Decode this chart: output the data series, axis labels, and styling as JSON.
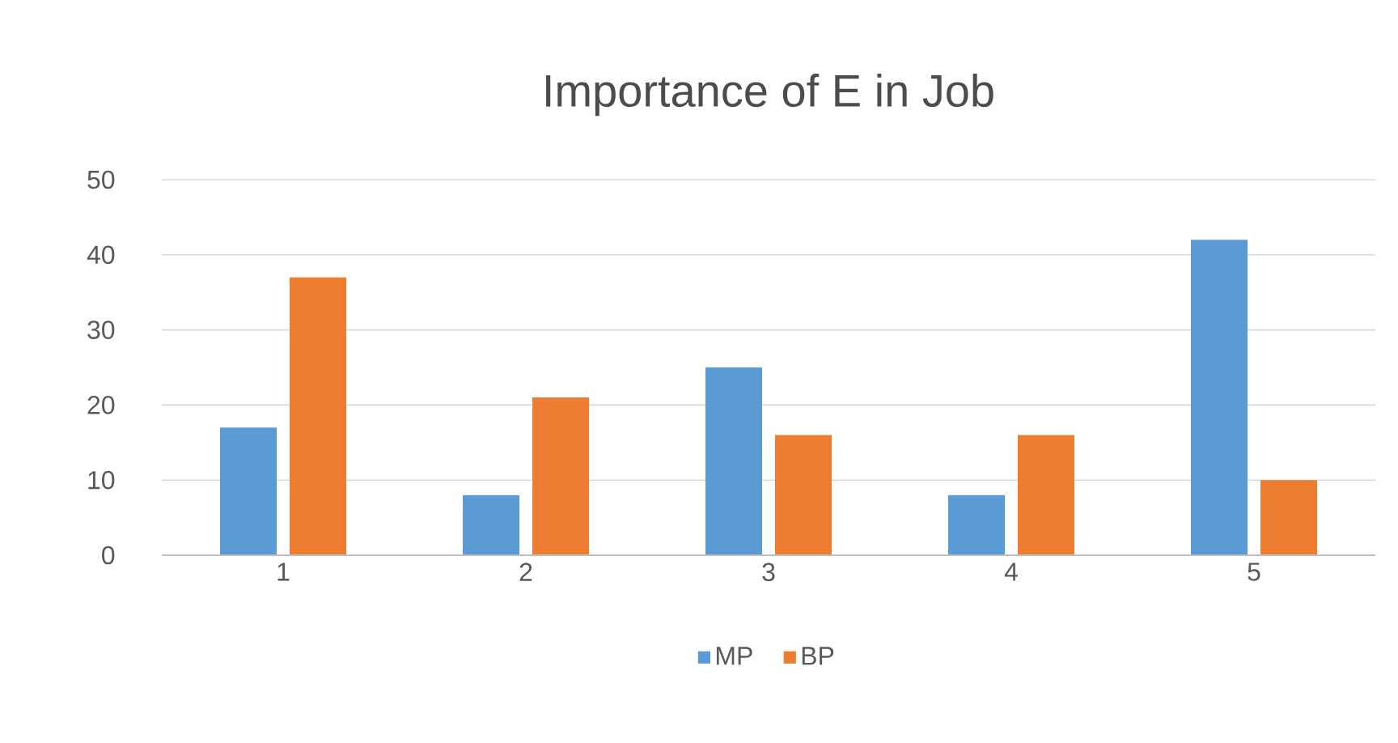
{
  "chart_data": {
    "type": "bar",
    "title": "Importance of E in Job",
    "categories": [
      "1",
      "2",
      "3",
      "4",
      "5"
    ],
    "series": [
      {
        "name": "MP",
        "color": "#5b9bd5",
        "values": [
          17,
          8,
          25,
          8,
          42
        ]
      },
      {
        "name": "BP",
        "color": "#ed7d31",
        "values": [
          37,
          21,
          16,
          16,
          10
        ]
      }
    ],
    "ylim": [
      0,
      50
    ],
    "yticks": [
      0,
      10,
      20,
      30,
      40,
      50
    ],
    "grid": "y",
    "legend": "bottom"
  }
}
